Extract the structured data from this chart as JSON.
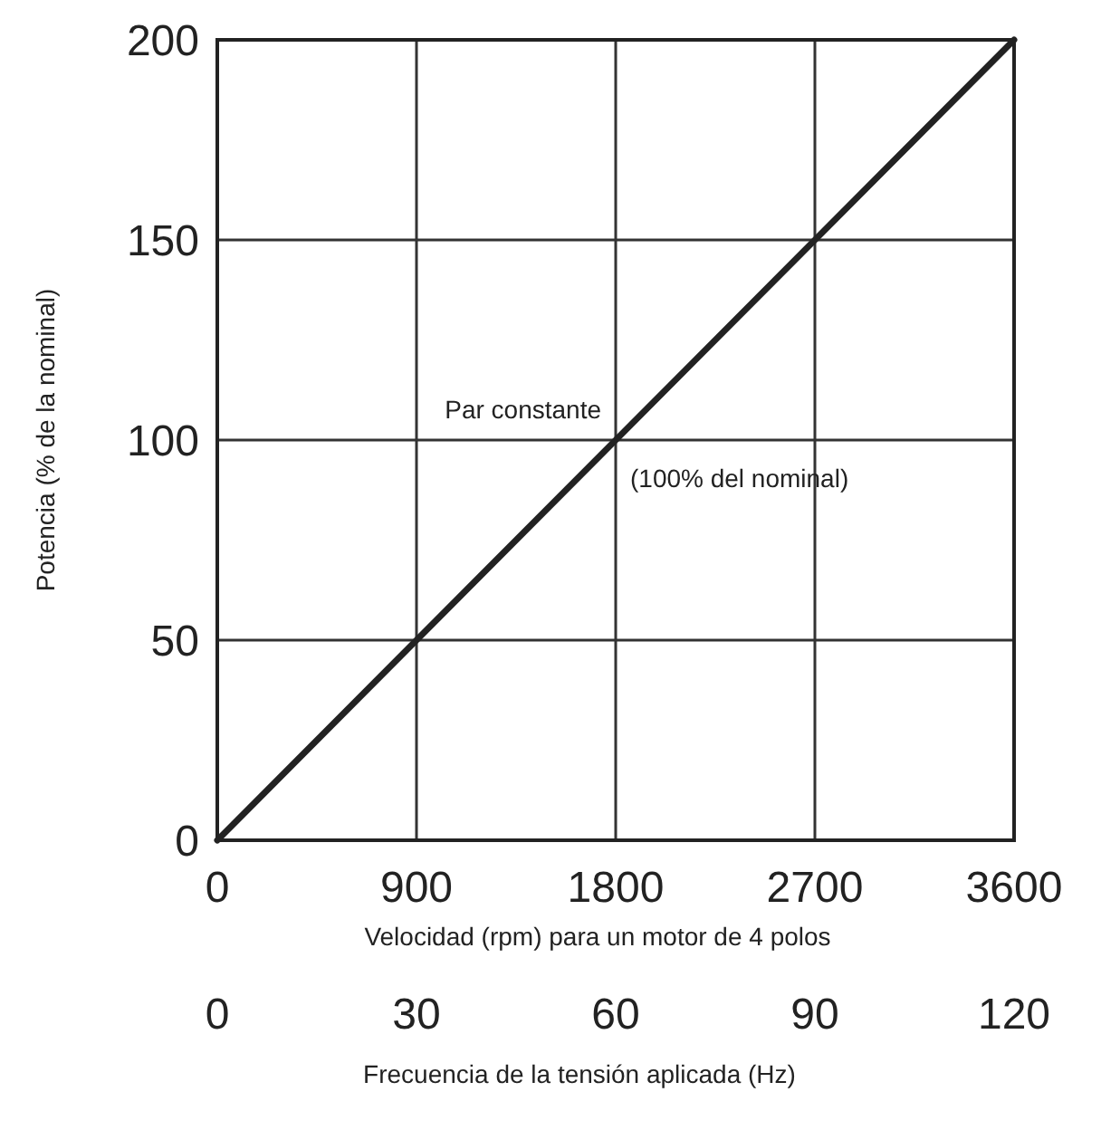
{
  "chart_data": {
    "type": "line",
    "xlabel": "Velocidad (rpm) para un motor de 4 polos",
    "ylabel": "Potencia (% de la nominal)",
    "x2label": "Frecuencia de la tensión aplicada (Hz)",
    "x": [
      0,
      3600
    ],
    "series": [
      {
        "color": "#222222",
        "values": [
          0,
          200
        ]
      }
    ],
    "xlim": [
      0,
      3600
    ],
    "xticks": [
      0,
      900,
      1800,
      2700,
      3600
    ],
    "x2lim": [
      0,
      120
    ],
    "x2ticks": [
      0,
      30,
      60,
      90,
      120
    ],
    "ylim": [
      0,
      200
    ],
    "yticks": [
      0,
      50,
      100,
      150,
      200
    ],
    "grid": true,
    "marker": "none",
    "line_style": "solid",
    "annotations": [
      {
        "text": "Par constante",
        "x": 1800,
        "y": 100
      },
      {
        "text": "(100% del nominal)",
        "x": 1800,
        "y": 100
      }
    ]
  }
}
